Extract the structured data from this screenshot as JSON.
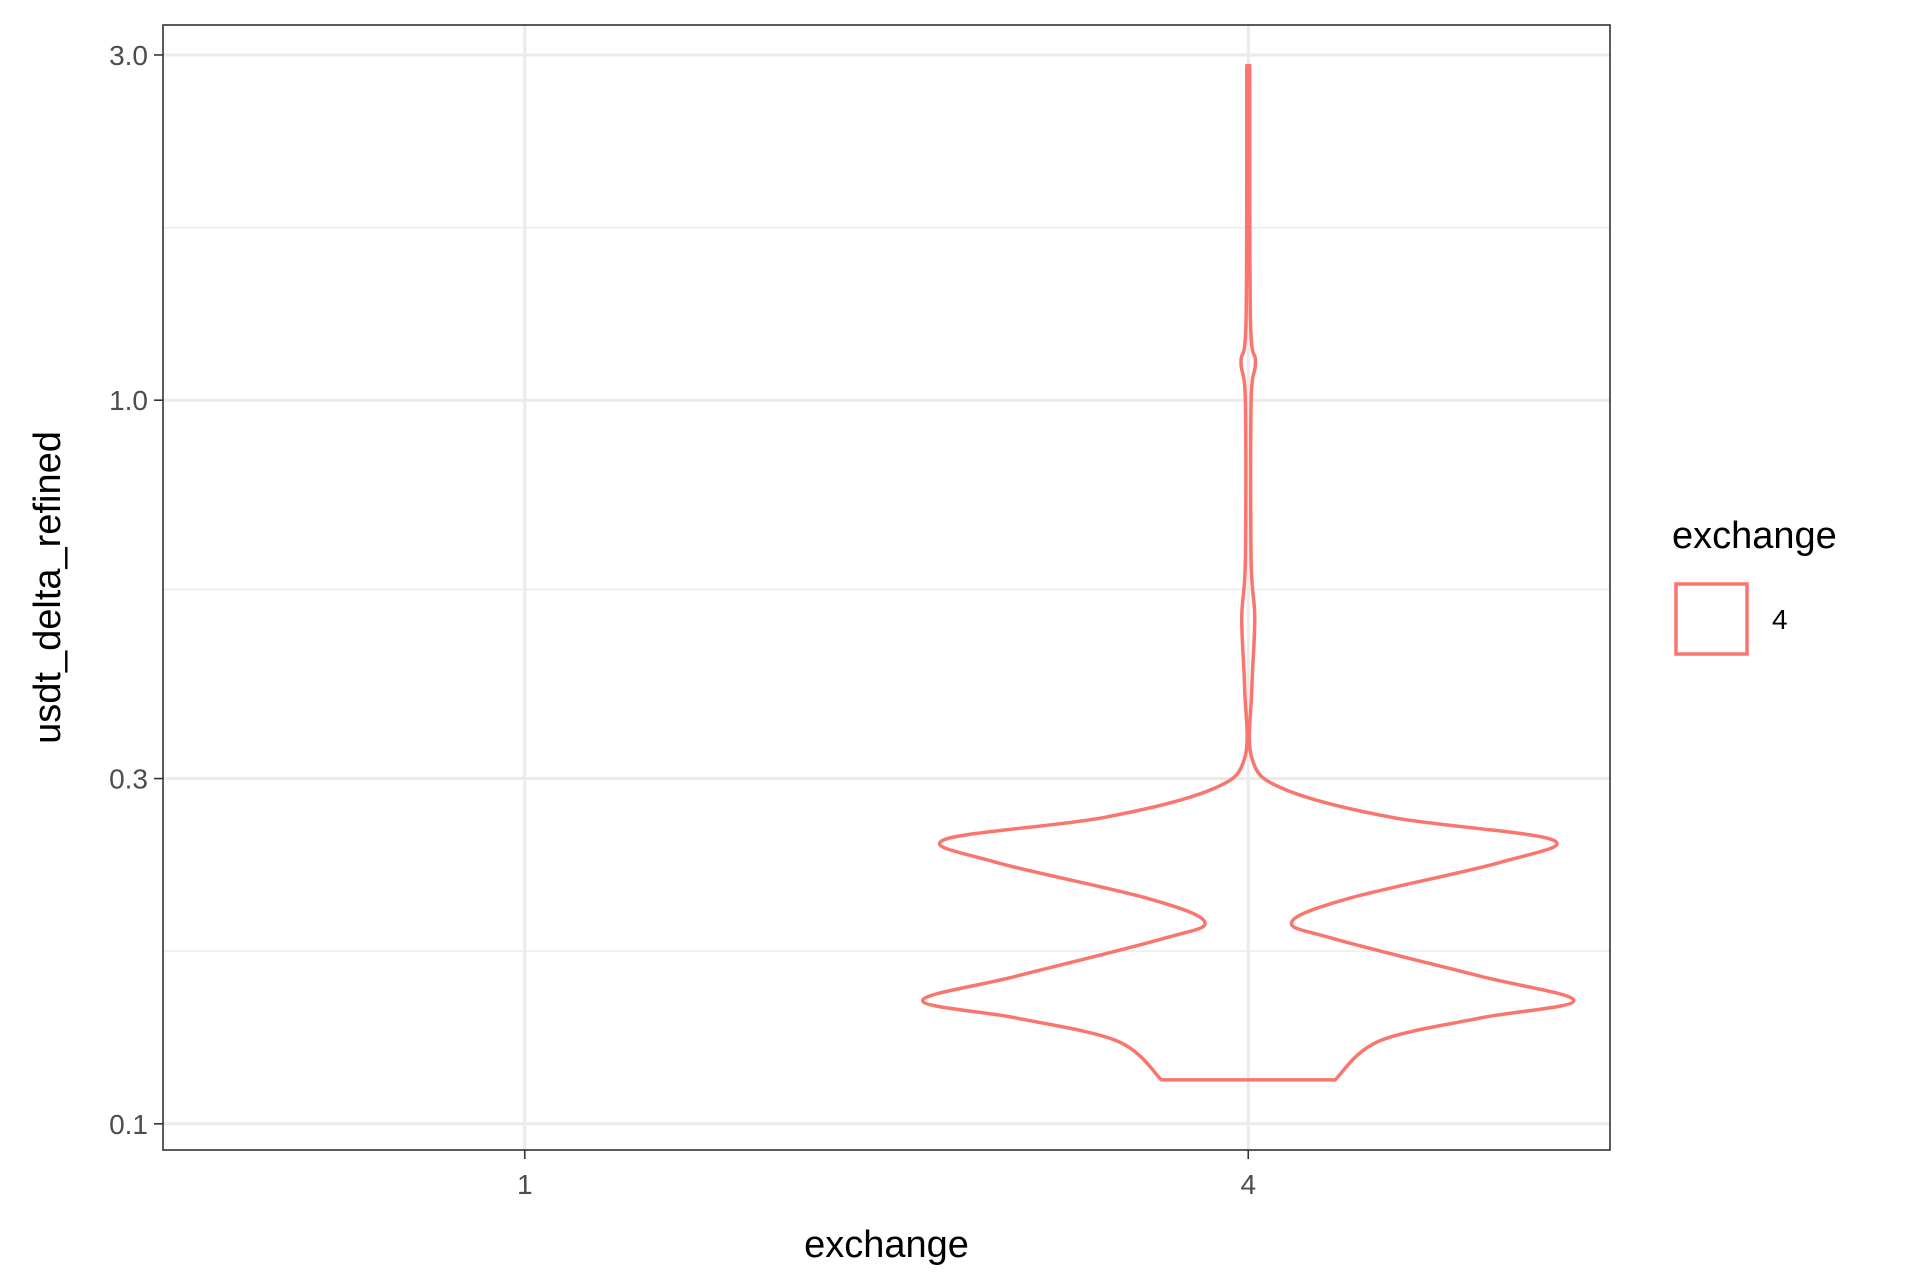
{
  "chart_data": {
    "type": "violin",
    "xlabel": "exchange",
    "ylabel": "usdt_delta_refined",
    "x_categories": [
      "1",
      "4"
    ],
    "y_scale": "log10",
    "y_ticks": [
      "0.1",
      "0.3",
      "1.0",
      "3.0"
    ],
    "y_tick_values": [
      0.1,
      0.3,
      1.0,
      3.0
    ],
    "ylim": [
      0.092,
      3.3
    ],
    "grid": true,
    "legend": {
      "title": "exchange",
      "position": "right",
      "entries": [
        {
          "label": "4",
          "color": "#F8766D"
        }
      ]
    },
    "series": [
      {
        "name": "4",
        "category": "4",
        "color": "#F8766D",
        "y_min": 0.115,
        "y_max": 2.9,
        "density_profile": [
          {
            "y": 0.115,
            "half_width": 0.12
          },
          {
            "y": 0.13,
            "half_width": 0.18
          },
          {
            "y": 0.14,
            "half_width": 0.32
          },
          {
            "y": 0.148,
            "half_width": 0.45
          },
          {
            "y": 0.16,
            "half_width": 0.32
          },
          {
            "y": 0.18,
            "half_width": 0.12
          },
          {
            "y": 0.19,
            "half_width": 0.06
          },
          {
            "y": 0.205,
            "half_width": 0.14
          },
          {
            "y": 0.23,
            "half_width": 0.35
          },
          {
            "y": 0.247,
            "half_width": 0.42
          },
          {
            "y": 0.265,
            "half_width": 0.2
          },
          {
            "y": 0.29,
            "half_width": 0.05
          },
          {
            "y": 0.32,
            "half_width": 0.005
          },
          {
            "y": 0.4,
            "half_width": 0.005
          },
          {
            "y": 0.5,
            "half_width": 0.009
          },
          {
            "y": 0.6,
            "half_width": 0.004
          },
          {
            "y": 1.0,
            "half_width": 0.004
          },
          {
            "y": 1.13,
            "half_width": 0.01
          },
          {
            "y": 1.3,
            "half_width": 0.003
          },
          {
            "y": 2.9,
            "half_width": 0.002
          }
        ]
      }
    ]
  }
}
